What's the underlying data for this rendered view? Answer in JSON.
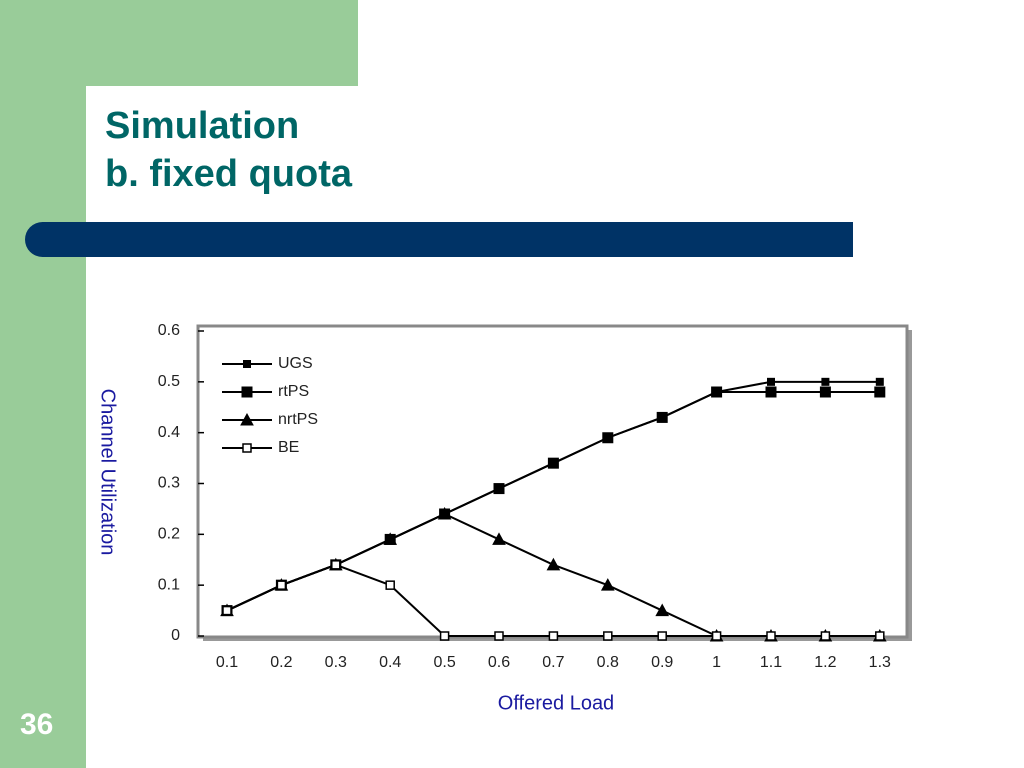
{
  "slide": {
    "title_line1": "Simulation",
    "title_line2": "b. fixed quota",
    "page_number": "36"
  },
  "chart_data": {
    "type": "line",
    "x_label": "Offered Load",
    "y_label": "Channel Utilization",
    "categories": [
      "0.1",
      "0.2",
      "0.3",
      "0.4",
      "0.5",
      "0.6",
      "0.7",
      "0.8",
      "0.9",
      "1",
      "1.1",
      "1.2",
      "1.3"
    ],
    "series": [
      {
        "name": "UGS",
        "color": "#000000",
        "marker": "small-square",
        "values": [
          0.05,
          0.1,
          0.14,
          0.19,
          0.24,
          0.29,
          0.34,
          0.39,
          0.43,
          0.48,
          0.5,
          0.5,
          0.5
        ]
      },
      {
        "name": "rtPS",
        "color": "#000000",
        "marker": "square",
        "values": [
          0.05,
          0.1,
          0.14,
          0.19,
          0.24,
          0.29,
          0.34,
          0.39,
          0.43,
          0.48,
          0.48,
          0.48,
          0.48
        ]
      },
      {
        "name": "nrtPS",
        "color": "#000000",
        "marker": "triangle",
        "values": [
          0.05,
          0.1,
          0.14,
          0.19,
          0.24,
          0.19,
          0.14,
          0.1,
          0.05,
          0,
          0,
          0,
          0
        ]
      },
      {
        "name": "BE",
        "color": "#000000",
        "marker": "open-square",
        "values": [
          0.05,
          0.1,
          0.14,
          0.1,
          0,
          0,
          0,
          0,
          0,
          0,
          0,
          0,
          0
        ]
      }
    ],
    "ylim": [
      0,
      0.6
    ],
    "yticks": [
      0,
      0.1,
      0.2,
      0.3,
      0.4,
      0.5,
      0.6
    ],
    "legend": "upper left",
    "grid": false
  }
}
